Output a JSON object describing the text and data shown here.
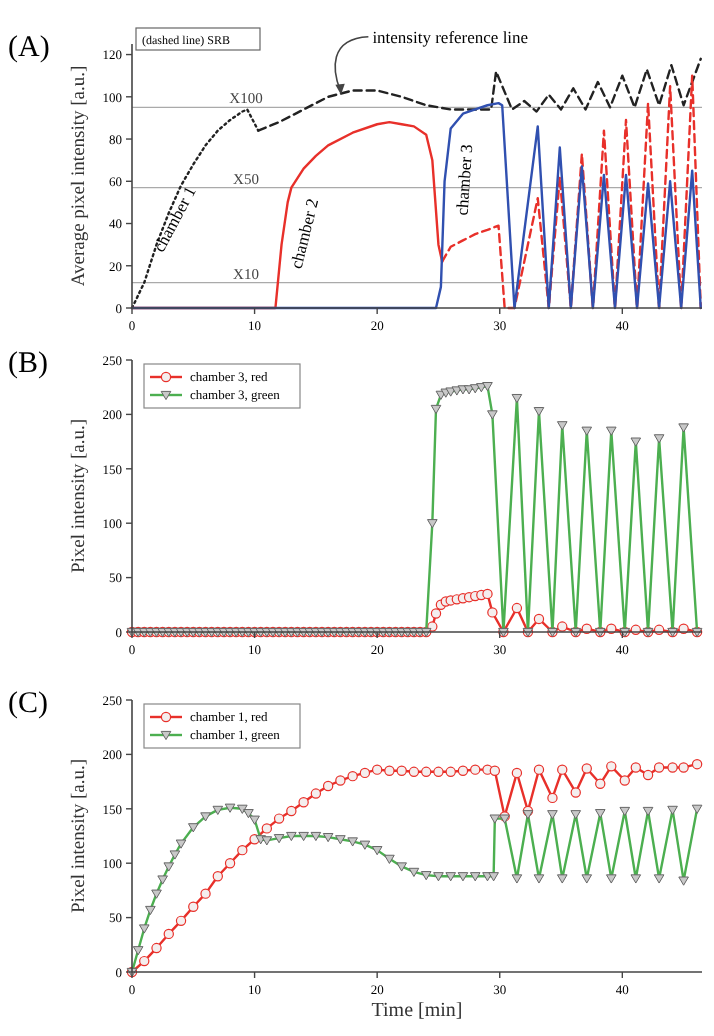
{
  "chart_data": [
    {
      "type": "line",
      "title": "(A)",
      "ylabel": "Average pixel intensity [a.u.]",
      "xlim": [
        0,
        46.5
      ],
      "xticks": [
        0,
        10,
        20,
        30,
        40
      ],
      "ylim": [
        0,
        125
      ],
      "yticks": [
        0,
        20,
        40,
        60,
        80,
        100,
        120
      ],
      "series": [
        {
          "color": "#222222",
          "line_style": "dotted",
          "x": [
            0,
            1,
            2,
            3,
            4,
            5,
            6,
            7,
            8,
            9,
            9.4,
            10.3
          ],
          "values": [
            0,
            12,
            30,
            45,
            58,
            68,
            77,
            84,
            89,
            93,
            94,
            84
          ]
        },
        {
          "color": "#222222",
          "line_style": "dashed",
          "x": [
            10.3,
            12,
            14,
            16,
            18,
            20,
            22,
            24,
            26,
            28,
            29.3,
            29.7,
            31,
            32,
            33,
            34,
            35,
            36,
            37,
            38,
            39,
            40,
            41,
            42,
            43,
            44,
            45,
            46.4
          ],
          "values": [
            84,
            88,
            94,
            100,
            103,
            103,
            100,
            96,
            94,
            94,
            94,
            112,
            94,
            98,
            93,
            101,
            94,
            104,
            94,
            107,
            95,
            110,
            95,
            113,
            96,
            115,
            96,
            118
          ]
        },
        {
          "color": "#e8302a",
          "line_style": "solid",
          "x": [
            0,
            11.7,
            12.2,
            12.7,
            13,
            14,
            15,
            16,
            18,
            20,
            21,
            22,
            23,
            24,
            24.5,
            25,
            25.3
          ],
          "values": [
            0,
            0,
            30,
            50,
            57,
            66,
            72,
            77,
            83,
            87,
            88,
            87,
            86,
            82,
            70,
            30,
            22
          ]
        },
        {
          "color": "#e8302a",
          "line_style": "dashed",
          "x": [
            25.3,
            26,
            27,
            28,
            29,
            29.9,
            30.4,
            31.2,
            33.1,
            34,
            34.9,
            35.8,
            36.7,
            37.6,
            38.5,
            39.4,
            40.3,
            41.2,
            42.1,
            43,
            43.9,
            44.8,
            45.7,
            46.4
          ],
          "values": [
            22,
            29,
            32,
            35,
            37,
            39,
            0,
            0,
            52,
            0,
            62,
            0,
            73,
            0,
            84,
            0,
            89,
            0,
            97,
            0,
            105,
            0,
            110,
            0
          ]
        },
        {
          "color": "#3050b0",
          "line_style": "solid",
          "x": [
            0,
            24.8,
            25.2,
            25.5,
            26,
            27,
            28,
            29,
            29.9,
            30.2,
            31.2,
            33.1,
            34,
            34.9,
            35.8,
            36.7,
            37.6,
            38.5,
            39.4,
            40.3,
            41.2,
            42.1,
            43,
            43.9,
            44.8,
            45.7,
            46.4
          ],
          "values": [
            0,
            0,
            10,
            60,
            85,
            92,
            94,
            96,
            97,
            96,
            0,
            86,
            0,
            76,
            0,
            67,
            0,
            63,
            0,
            63,
            0,
            59,
            0,
            60,
            0,
            65,
            0
          ]
        }
      ],
      "ref_lines": [
        {
          "axis": "y",
          "value": 95,
          "label": "X100",
          "color": "#aaaaaa"
        },
        {
          "axis": "y",
          "value": 57,
          "label": "X50",
          "color": "#aaaaaa"
        },
        {
          "axis": "y",
          "value": 12,
          "label": "X10",
          "color": "#aaaaaa"
        }
      ],
      "annotations": [
        "(dashed line) SRB",
        "chamber 1",
        "chamber 2",
        "chamber 3",
        {
          "text": "intensity reference line",
          "x": 17,
          "y": 101
        }
      ]
    },
    {
      "type": "line",
      "title": "(B)",
      "ylabel": "Pixel intensity [a.u.]",
      "xlim": [
        0,
        46.5
      ],
      "xticks": [
        0,
        10,
        20,
        30,
        40
      ],
      "ylim": [
        0,
        250
      ],
      "yticks": [
        0,
        50,
        100,
        150,
        200,
        250
      ],
      "legend": "top left",
      "x": [
        0,
        0.5,
        1,
        1.5,
        2,
        2.5,
        3,
        3.5,
        4,
        4.5,
        5,
        5.5,
        6,
        6.5,
        7,
        7.5,
        8,
        8.5,
        9,
        9.5,
        10,
        10.5,
        11,
        11.5,
        12,
        12.5,
        13,
        13.5,
        14,
        14.5,
        15,
        15.5,
        16,
        16.5,
        17,
        17.5,
        18,
        18.5,
        19,
        19.5,
        20,
        20.5,
        21,
        21.5,
        22,
        22.5,
        23,
        23.5,
        24,
        24.5,
        24.8,
        25.2,
        25.6,
        26,
        26.5,
        27,
        27.5,
        28,
        28.5,
        29,
        29.4,
        30.3,
        31.4,
        32.3,
        33.2,
        34.3,
        35.1,
        36.2,
        37.1,
        38.2,
        39.1,
        40.2,
        41.1,
        42.1,
        43,
        44.1,
        45,
        46.1
      ],
      "series": [
        {
          "name": "chamber 3, red",
          "color": "#e8302a",
          "marker": "circle",
          "values": [
            0,
            0,
            0,
            0,
            0,
            0,
            0,
            0,
            0,
            0,
            0,
            0,
            0,
            0,
            0,
            0,
            0,
            0,
            0,
            0,
            0,
            0,
            0,
            0,
            0,
            0,
            0,
            0,
            0,
            0,
            0,
            0,
            0,
            0,
            0,
            0,
            0,
            0,
            0,
            0,
            0,
            0,
            0,
            0,
            0,
            0,
            0,
            0,
            0,
            5,
            17,
            25,
            28,
            29,
            30,
            31,
            32,
            33,
            34,
            35,
            18,
            0,
            22,
            0,
            12,
            0,
            5,
            0,
            3,
            0,
            3,
            0,
            2,
            0,
            2,
            0,
            3,
            0
          ]
        },
        {
          "name": "chamber 3, green",
          "color": "#4caf50",
          "marker": "triangle",
          "values": [
            0,
            0,
            0,
            0,
            0,
            0,
            0,
            0,
            0,
            0,
            0,
            0,
            0,
            0,
            0,
            0,
            0,
            0,
            0,
            0,
            0,
            0,
            0,
            0,
            0,
            0,
            0,
            0,
            0,
            0,
            0,
            0,
            0,
            0,
            0,
            0,
            0,
            0,
            0,
            0,
            0,
            0,
            0,
            0,
            0,
            0,
            0,
            0,
            0,
            100,
            205,
            218,
            220,
            221,
            222,
            223,
            223,
            224,
            225,
            226,
            200,
            0,
            215,
            0,
            203,
            0,
            190,
            0,
            185,
            0,
            185,
            0,
            175,
            0,
            178,
            0,
            188,
            0
          ]
        }
      ]
    },
    {
      "type": "line",
      "title": "(C)",
      "ylabel": "Pixel intensity [a.u.]",
      "xlabel": "Time [min]",
      "xlim": [
        0,
        46.5
      ],
      "xticks": [
        0,
        10,
        20,
        30,
        40
      ],
      "ylim": [
        0,
        250
      ],
      "yticks": [
        0,
        50,
        100,
        150,
        200,
        250
      ],
      "legend": "top left",
      "series": [
        {
          "name": "chamber 1, red",
          "color": "#e8302a",
          "marker": "circle",
          "x": [
            0,
            1,
            2,
            3,
            4,
            5,
            6,
            7,
            8,
            9,
            10,
            11,
            12,
            13,
            14,
            15,
            16,
            17,
            18,
            19,
            20,
            21,
            22,
            23,
            24,
            25,
            26,
            27,
            28,
            29,
            29.6,
            30.4,
            31.4,
            32.3,
            33.2,
            34.3,
            35.1,
            36.2,
            37.1,
            38.2,
            39.1,
            40.2,
            41.1,
            42.1,
            43,
            44.1,
            45,
            46.1
          ],
          "values": [
            0,
            10,
            22,
            35,
            47,
            60,
            72,
            88,
            100,
            112,
            122,
            132,
            141,
            148,
            156,
            164,
            171,
            176,
            180,
            183,
            186,
            185,
            185,
            184,
            184,
            184,
            184,
            185,
            186,
            186,
            185,
            143,
            183,
            148,
            186,
            160,
            186,
            165,
            187,
            173,
            189,
            176,
            188,
            181,
            188,
            188,
            188,
            191
          ]
        },
        {
          "name": "chamber 1, green",
          "color": "#4caf50",
          "marker": "triangle",
          "x": [
            0,
            0.5,
            1,
            1.5,
            2,
            2.5,
            3,
            3.5,
            4,
            5,
            6,
            7,
            8,
            9,
            9.5,
            10,
            10.5,
            11,
            12,
            13,
            14,
            15,
            16,
            17,
            18,
            19,
            20,
            21,
            22,
            23,
            24,
            25,
            26,
            27,
            28,
            29,
            29.5,
            29.6,
            30.4,
            31.4,
            32.3,
            33.2,
            34.3,
            35.1,
            36.2,
            37.1,
            38.2,
            39.1,
            40.2,
            41.1,
            42.1,
            43,
            44.1,
            45,
            46.1
          ],
          "values": [
            0,
            20,
            40,
            57,
            72,
            85,
            97,
            108,
            118,
            133,
            143,
            149,
            151,
            150,
            146,
            140,
            122,
            121,
            123,
            125,
            125,
            125,
            124,
            122,
            120,
            117,
            112,
            104,
            97,
            92,
            89,
            88,
            88,
            88,
            88,
            88,
            88,
            141,
            141,
            86,
            145,
            86,
            145,
            86,
            145,
            86,
            146,
            86,
            148,
            86,
            148,
            86,
            149,
            84,
            150
          ]
        }
      ]
    }
  ]
}
